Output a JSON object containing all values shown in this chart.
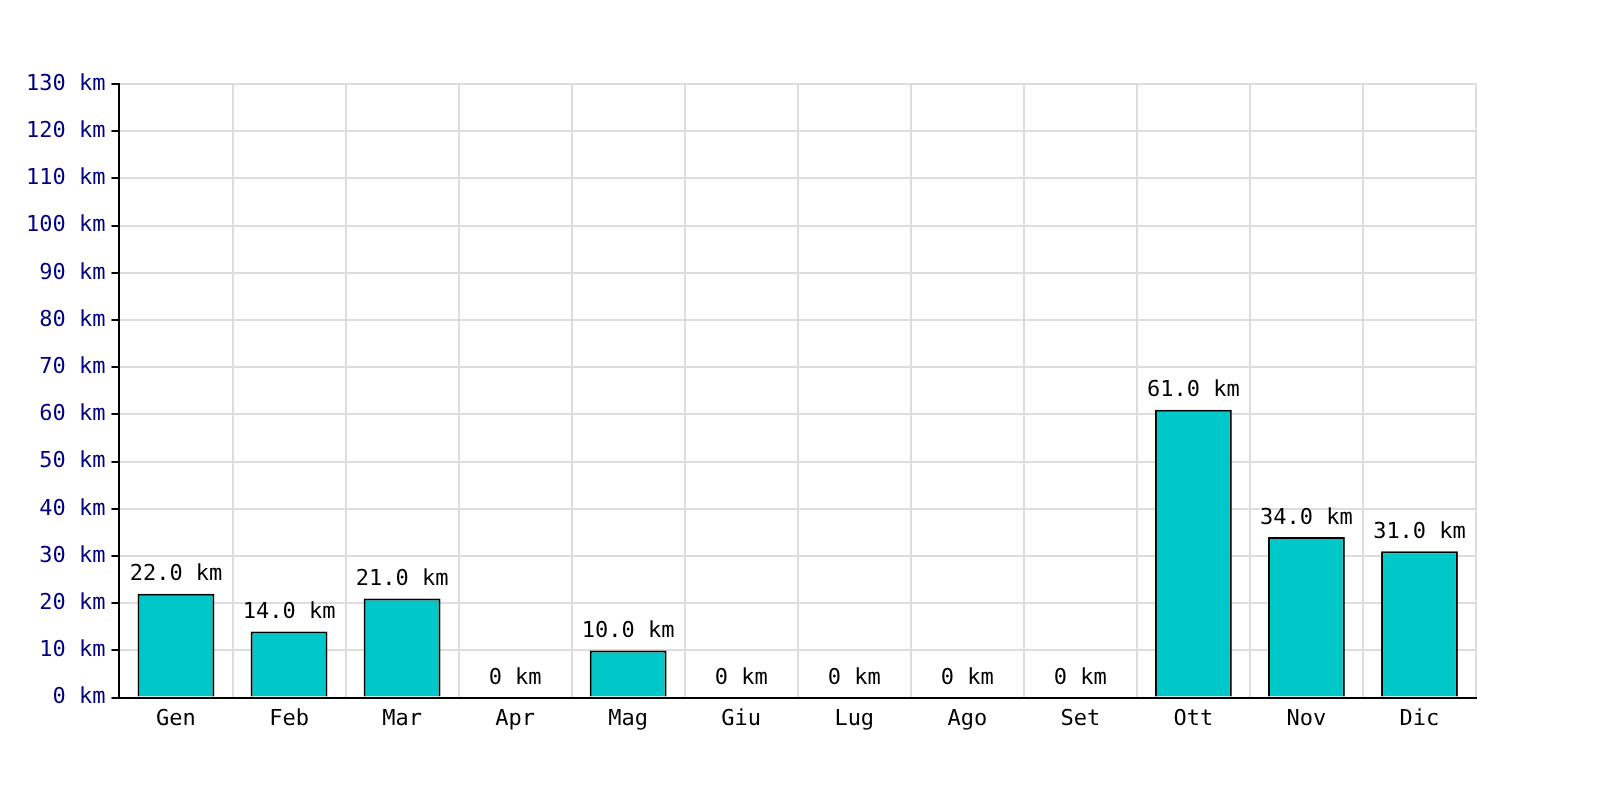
{
  "chart_data": {
    "type": "bar",
    "categories": [
      "Gen",
      "Feb",
      "Mar",
      "Apr",
      "Mag",
      "Giu",
      "Lug",
      "Ago",
      "Set",
      "Ott",
      "Nov",
      "Dic"
    ],
    "values": [
      22,
      14,
      21,
      0,
      10,
      0,
      0,
      0,
      0,
      61,
      34,
      31
    ],
    "value_labels": [
      "22.0 km",
      "14.0 km",
      "21.0 km",
      "0 km",
      "10.0 km",
      "0 km",
      "0 km",
      "0 km",
      "0 km",
      "61.0 km",
      "34.0 km",
      "31.0 km"
    ],
    "color": "#00c8c8",
    "ylim": [
      0,
      130
    ],
    "yticks": [
      {
        "value": 0,
        "label": "0 km"
      },
      {
        "value": 10,
        "label": "10 km"
      },
      {
        "value": 20,
        "label": "20 km"
      },
      {
        "value": 30,
        "label": "30 km"
      },
      {
        "value": 40,
        "label": "40 km"
      },
      {
        "value": 50,
        "label": "50 km"
      },
      {
        "value": 60,
        "label": "60 km"
      },
      {
        "value": 70,
        "label": "70 km"
      },
      {
        "value": 80,
        "label": "80 km"
      },
      {
        "value": 90,
        "label": "90 km"
      },
      {
        "value": 100,
        "label": "100 km"
      },
      {
        "value": 110,
        "label": "110 km"
      },
      {
        "value": 120,
        "label": "120 km"
      },
      {
        "value": 130,
        "label": "130 km"
      }
    ],
    "grid": true
  }
}
